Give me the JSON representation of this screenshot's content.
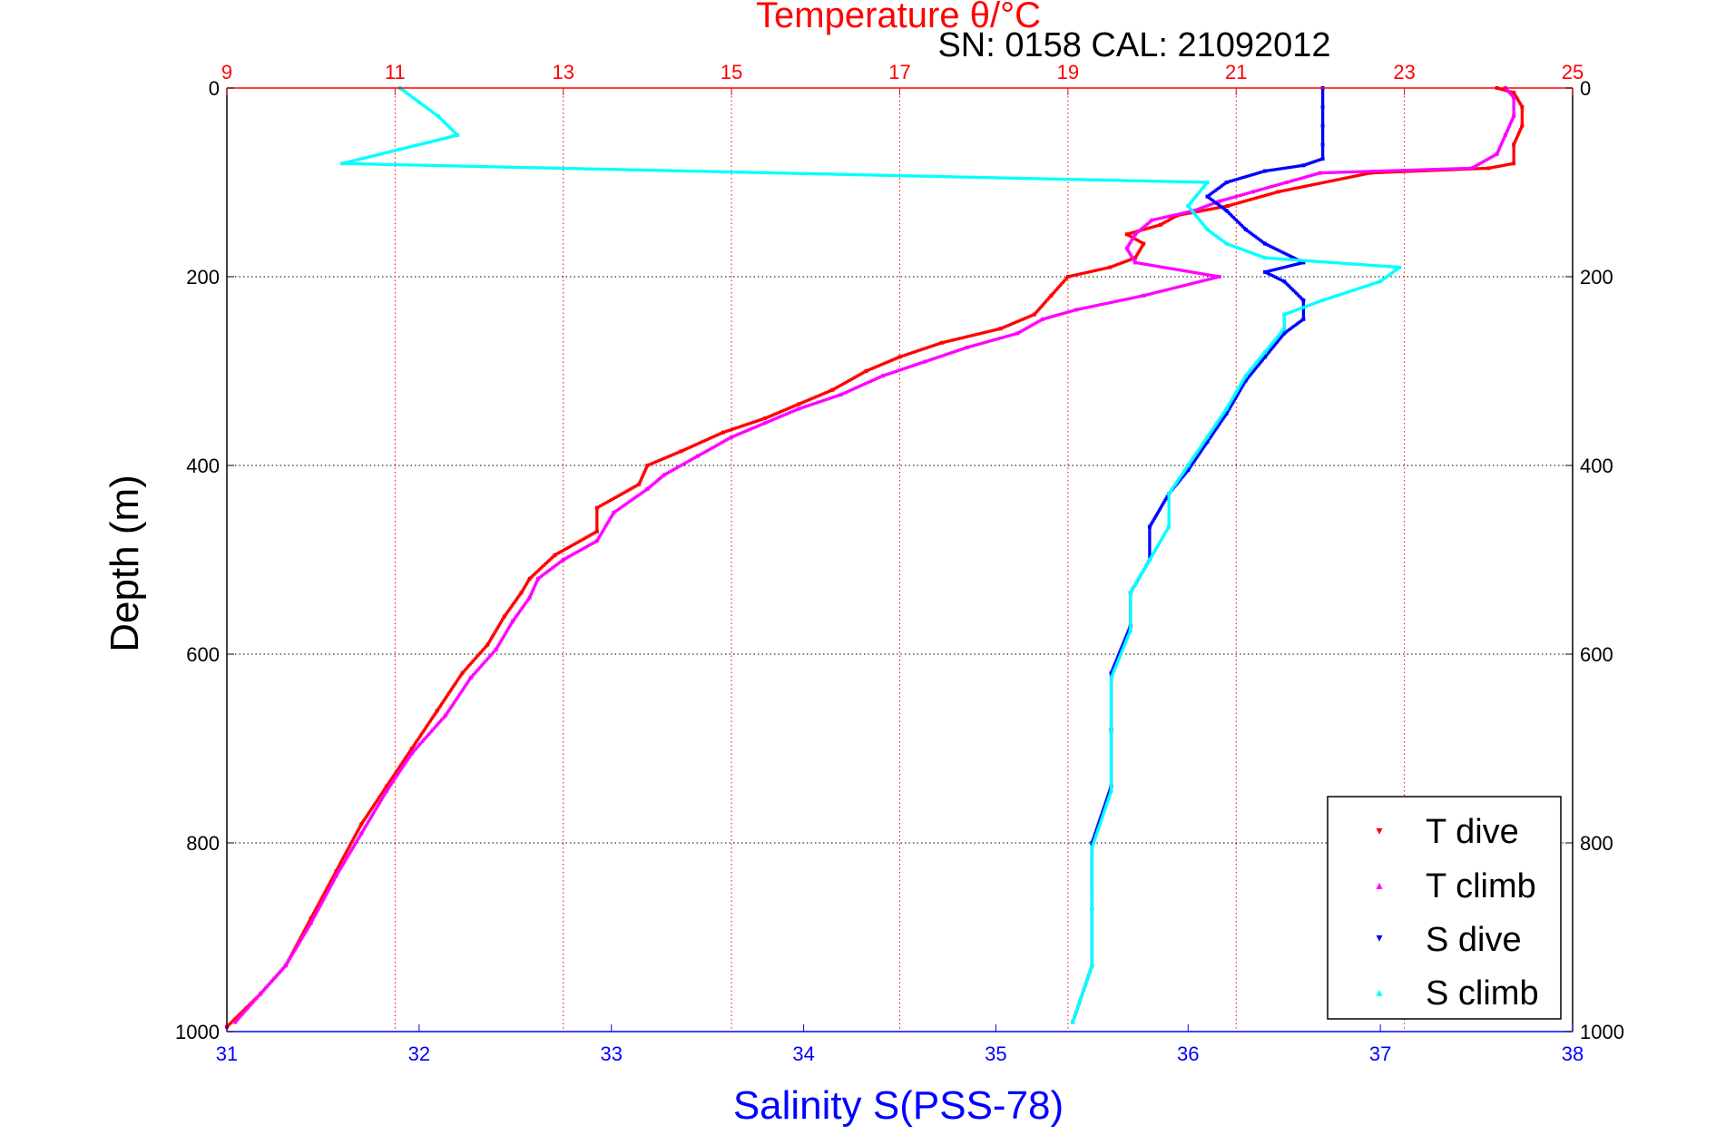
{
  "chart_data": {
    "type": "scatter",
    "title": "Temperature θ/°C",
    "subtitle": "SN: 0158  CAL: 21092012",
    "xlabel_bottom": "Salinity S(PSS-78)",
    "ylabel": "Depth (m)",
    "colors": {
      "temperature_axis": "#ff0000",
      "salinity_axis": "#0000ff",
      "t_dive": "#ff0000",
      "t_climb": "#ff00ff",
      "s_dive": "#0000ff",
      "s_climb": "#00ffff",
      "grid": "#000000"
    },
    "depth_axis": {
      "range": [
        0,
        1000
      ],
      "reversed": true,
      "ticks": [
        "0",
        "200",
        "400",
        "600",
        "800",
        "1000"
      ]
    },
    "temperature_axis": {
      "range": [
        9,
        25
      ],
      "ticks": [
        "9",
        "11",
        "13",
        "15",
        "17",
        "19",
        "21",
        "23",
        "25"
      ]
    },
    "salinity_axis": {
      "range": [
        31,
        38
      ],
      "ticks": [
        "31",
        "32",
        "33",
        "34",
        "35",
        "36",
        "37",
        "38"
      ]
    },
    "grid": true,
    "legend_position": "bottom-right",
    "legend": [
      {
        "label": "T dive",
        "color": "#ff0000",
        "marker": "▾"
      },
      {
        "label": "T climb",
        "color": "#ff00ff",
        "marker": "▴"
      },
      {
        "label": "S dive",
        "color": "#0000ff",
        "marker": "▾"
      },
      {
        "label": "S climb",
        "color": "#00ffff",
        "marker": "▴"
      }
    ],
    "series": [
      {
        "name": "T dive",
        "axis": "temperature",
        "points": [
          [
            24.1,
            0
          ],
          [
            24.3,
            5
          ],
          [
            24.4,
            20
          ],
          [
            24.4,
            40
          ],
          [
            24.3,
            60
          ],
          [
            24.3,
            80
          ],
          [
            24.0,
            85
          ],
          [
            22.6,
            90
          ],
          [
            21.5,
            110
          ],
          [
            20.9,
            125
          ],
          [
            20.3,
            135
          ],
          [
            20.1,
            145
          ],
          [
            19.7,
            155
          ],
          [
            19.9,
            165
          ],
          [
            19.8,
            180
          ],
          [
            19.5,
            190
          ],
          [
            19.0,
            200
          ],
          [
            18.8,
            220
          ],
          [
            18.6,
            240
          ],
          [
            18.2,
            255
          ],
          [
            17.5,
            270
          ],
          [
            17.0,
            285
          ],
          [
            16.6,
            300
          ],
          [
            16.2,
            320
          ],
          [
            15.8,
            335
          ],
          [
            15.4,
            350
          ],
          [
            14.9,
            365
          ],
          [
            14.4,
            385
          ],
          [
            14.0,
            400
          ],
          [
            13.9,
            420
          ],
          [
            13.4,
            445
          ],
          [
            13.4,
            470
          ],
          [
            12.9,
            495
          ],
          [
            12.6,
            520
          ],
          [
            12.5,
            535
          ],
          [
            12.3,
            560
          ],
          [
            12.1,
            590
          ],
          [
            11.8,
            620
          ],
          [
            11.5,
            660
          ],
          [
            11.2,
            700
          ],
          [
            10.9,
            740
          ],
          [
            10.6,
            780
          ],
          [
            10.3,
            830
          ],
          [
            10.0,
            880
          ],
          [
            9.7,
            930
          ],
          [
            9.4,
            960
          ],
          [
            9.0,
            995
          ]
        ]
      },
      {
        "name": "T climb",
        "axis": "temperature",
        "points": [
          [
            24.2,
            0
          ],
          [
            24.3,
            10
          ],
          [
            24.3,
            30
          ],
          [
            24.2,
            50
          ],
          [
            24.1,
            70
          ],
          [
            23.8,
            85
          ],
          [
            22.0,
            90
          ],
          [
            21.6,
            100
          ],
          [
            21.2,
            110
          ],
          [
            20.8,
            120
          ],
          [
            20.5,
            130
          ],
          [
            20.0,
            140
          ],
          [
            19.8,
            155
          ],
          [
            19.7,
            170
          ],
          [
            19.8,
            185
          ],
          [
            20.8,
            200
          ],
          [
            19.9,
            220
          ],
          [
            19.1,
            235
          ],
          [
            18.7,
            245
          ],
          [
            18.4,
            260
          ],
          [
            17.8,
            275
          ],
          [
            17.3,
            290
          ],
          [
            16.8,
            305
          ],
          [
            16.3,
            325
          ],
          [
            15.8,
            340
          ],
          [
            15.4,
            355
          ],
          [
            15.0,
            370
          ],
          [
            14.6,
            390
          ],
          [
            14.2,
            410
          ],
          [
            14.0,
            425
          ],
          [
            13.6,
            450
          ],
          [
            13.4,
            480
          ],
          [
            13.0,
            500
          ],
          [
            12.7,
            520
          ],
          [
            12.6,
            540
          ],
          [
            12.4,
            565
          ],
          [
            12.2,
            595
          ],
          [
            11.9,
            625
          ],
          [
            11.6,
            665
          ],
          [
            11.2,
            705
          ],
          [
            10.9,
            745
          ],
          [
            10.6,
            790
          ],
          [
            10.3,
            835
          ],
          [
            10.0,
            885
          ],
          [
            9.7,
            930
          ],
          [
            9.4,
            960
          ],
          [
            9.1,
            990
          ]
        ]
      },
      {
        "name": "S dive",
        "axis": "salinity",
        "points": [
          [
            36.7,
            0
          ],
          [
            36.7,
            20
          ],
          [
            36.7,
            40
          ],
          [
            36.7,
            60
          ],
          [
            36.7,
            75
          ],
          [
            36.6,
            82
          ],
          [
            36.4,
            88
          ],
          [
            36.2,
            100
          ],
          [
            36.1,
            115
          ],
          [
            36.2,
            130
          ],
          [
            36.3,
            150
          ],
          [
            36.4,
            165
          ],
          [
            36.6,
            185
          ],
          [
            36.4,
            195
          ],
          [
            36.5,
            205
          ],
          [
            36.6,
            225
          ],
          [
            36.6,
            245
          ],
          [
            36.5,
            260
          ],
          [
            36.4,
            285
          ],
          [
            36.3,
            310
          ],
          [
            36.2,
            345
          ],
          [
            36.1,
            375
          ],
          [
            36.0,
            405
          ],
          [
            35.9,
            430
          ],
          [
            35.8,
            465
          ],
          [
            35.8,
            500
          ],
          [
            35.7,
            535
          ],
          [
            35.7,
            570
          ],
          [
            35.6,
            620
          ],
          [
            35.6,
            680
          ],
          [
            35.6,
            740
          ],
          [
            35.5,
            800
          ],
          [
            35.5,
            870
          ],
          [
            35.5,
            930
          ],
          [
            35.4,
            990
          ]
        ]
      },
      {
        "name": "S climb",
        "axis": "salinity",
        "points": [
          [
            31.9,
            0
          ],
          [
            32.0,
            15
          ],
          [
            32.1,
            30
          ],
          [
            32.2,
            50
          ],
          [
            31.9,
            65
          ],
          [
            31.6,
            80
          ],
          [
            36.1,
            100
          ],
          [
            36.0,
            125
          ],
          [
            36.1,
            150
          ],
          [
            36.2,
            165
          ],
          [
            36.4,
            180
          ],
          [
            37.1,
            190
          ],
          [
            37.0,
            205
          ],
          [
            36.7,
            225
          ],
          [
            36.5,
            240
          ],
          [
            36.5,
            255
          ],
          [
            36.4,
            280
          ],
          [
            36.3,
            305
          ],
          [
            36.2,
            340
          ],
          [
            36.1,
            370
          ],
          [
            36.0,
            400
          ],
          [
            35.9,
            430
          ],
          [
            35.9,
            465
          ],
          [
            35.8,
            500
          ],
          [
            35.7,
            535
          ],
          [
            35.7,
            575
          ],
          [
            35.6,
            625
          ],
          [
            35.6,
            685
          ],
          [
            35.6,
            745
          ],
          [
            35.5,
            805
          ],
          [
            35.5,
            870
          ],
          [
            35.5,
            930
          ],
          [
            35.4,
            990
          ]
        ]
      }
    ]
  }
}
